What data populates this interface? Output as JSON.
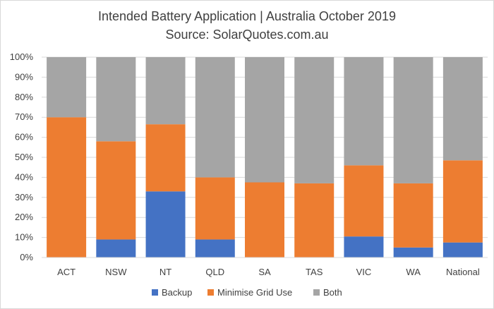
{
  "chart_data": {
    "type": "bar",
    "stacked": true,
    "title": "Intended Battery Application | Australia October 2019",
    "subtitle": "Source: SolarQuotes.com.au",
    "categories": [
      "ACT",
      "NSW",
      "NT",
      "QLD",
      "SA",
      "TAS",
      "VIC",
      "WA",
      "National"
    ],
    "series": [
      {
        "name": "Backup",
        "color": "#4472c4",
        "values": [
          0,
          9,
          33,
          9,
          0,
          0,
          10.5,
          5,
          7.5
        ]
      },
      {
        "name": "Minimise Grid Use",
        "color": "#ed7d31",
        "values": [
          70,
          49,
          33.5,
          31,
          37.5,
          37,
          35.5,
          32,
          41
        ]
      },
      {
        "name": "Both",
        "color": "#a5a5a5",
        "values": [
          30,
          42,
          33.5,
          60,
          62.5,
          63,
          54,
          63,
          51.5
        ]
      }
    ],
    "yticks": [
      "0%",
      "10%",
      "20%",
      "30%",
      "40%",
      "50%",
      "60%",
      "70%",
      "80%",
      "90%",
      "100%"
    ],
    "ylim": [
      0,
      100
    ],
    "grid": true,
    "legend_position": "bottom"
  }
}
